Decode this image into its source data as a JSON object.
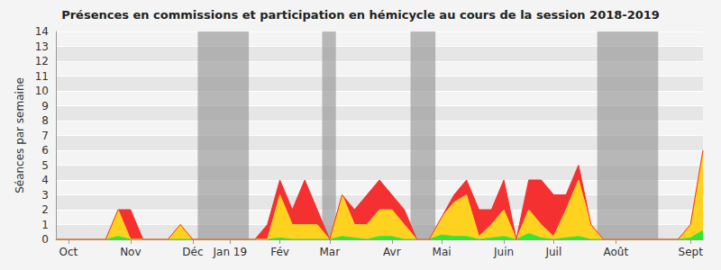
{
  "chart_data": {
    "type": "area",
    "title": "Présences en commissions et participation en hémicycle au cours de la session 2018-2019",
    "y_label": "Séances par semaine",
    "categories": [
      null,
      "Oct",
      null,
      null,
      null,
      null,
      "Nov",
      null,
      null,
      null,
      null,
      "Déc",
      null,
      null,
      "Jan 19",
      null,
      null,
      null,
      "Fév",
      null,
      null,
      null,
      "Mar",
      null,
      null,
      null,
      null,
      "Avr",
      null,
      null,
      null,
      "Mai",
      null,
      null,
      null,
      null,
      "Juin",
      null,
      null,
      null,
      "Juil",
      null,
      null,
      null,
      null,
      "Août",
      null,
      null,
      null,
      null,
      null,
      "Sept",
      null
    ],
    "series": [
      {
        "color": "#33e633",
        "values": [
          0,
          0,
          0,
          0,
          0,
          0.2,
          0,
          0,
          0,
          0,
          0,
          0,
          0,
          0,
          0,
          0,
          0,
          0,
          0.1,
          0,
          0,
          0,
          0,
          0.2,
          0.1,
          0,
          0.2,
          0.2,
          0,
          0,
          0,
          0.3,
          0.2,
          0.2,
          0,
          0.1,
          0.2,
          0,
          0.4,
          0.1,
          0,
          0.1,
          0.2,
          0,
          0,
          0,
          0,
          0,
          0,
          0,
          0,
          0.1,
          0.6
        ]
      },
      {
        "color": "#ffd21f",
        "values": [
          0,
          0,
          0,
          0,
          0,
          1.8,
          0,
          0,
          0,
          0,
          1,
          0,
          0,
          0,
          0,
          0,
          0,
          0,
          2.9,
          1,
          1,
          1,
          0,
          2.8,
          0.9,
          1,
          1.8,
          1.8,
          1,
          0,
          0,
          1.2,
          2.3,
          2.8,
          0.2,
          0.9,
          1.8,
          0,
          1.6,
          0.9,
          0.2,
          1.9,
          3.8,
          1,
          0,
          0,
          0,
          0,
          0,
          0,
          0,
          0.9,
          5.4
        ]
      },
      {
        "color": "#f43030",
        "values": [
          0,
          0,
          0,
          0,
          0,
          0,
          2,
          0,
          0,
          0,
          0,
          0,
          0,
          0,
          0,
          0,
          0,
          1,
          1,
          1,
          3,
          1,
          0,
          0,
          1,
          2,
          2,
          1,
          1,
          0,
          0,
          0,
          0.5,
          1,
          1.8,
          1,
          2,
          0,
          2,
          3,
          2.8,
          1,
          1,
          0,
          0,
          0,
          0,
          0,
          0,
          0,
          0,
          0,
          0
        ]
      }
    ],
    "shaded_ranges": [
      [
        11.4,
        15.5
      ],
      [
        21.4,
        22.5
      ],
      [
        28.5,
        30.5
      ],
      [
        43.5,
        48.4
      ]
    ],
    "stacked": true,
    "ylim": [
      0,
      14
    ],
    "yticks": [
      0,
      1,
      2,
      3,
      4,
      5,
      6,
      7,
      8,
      9,
      10,
      11,
      12,
      13,
      14
    ],
    "grid": true
  }
}
